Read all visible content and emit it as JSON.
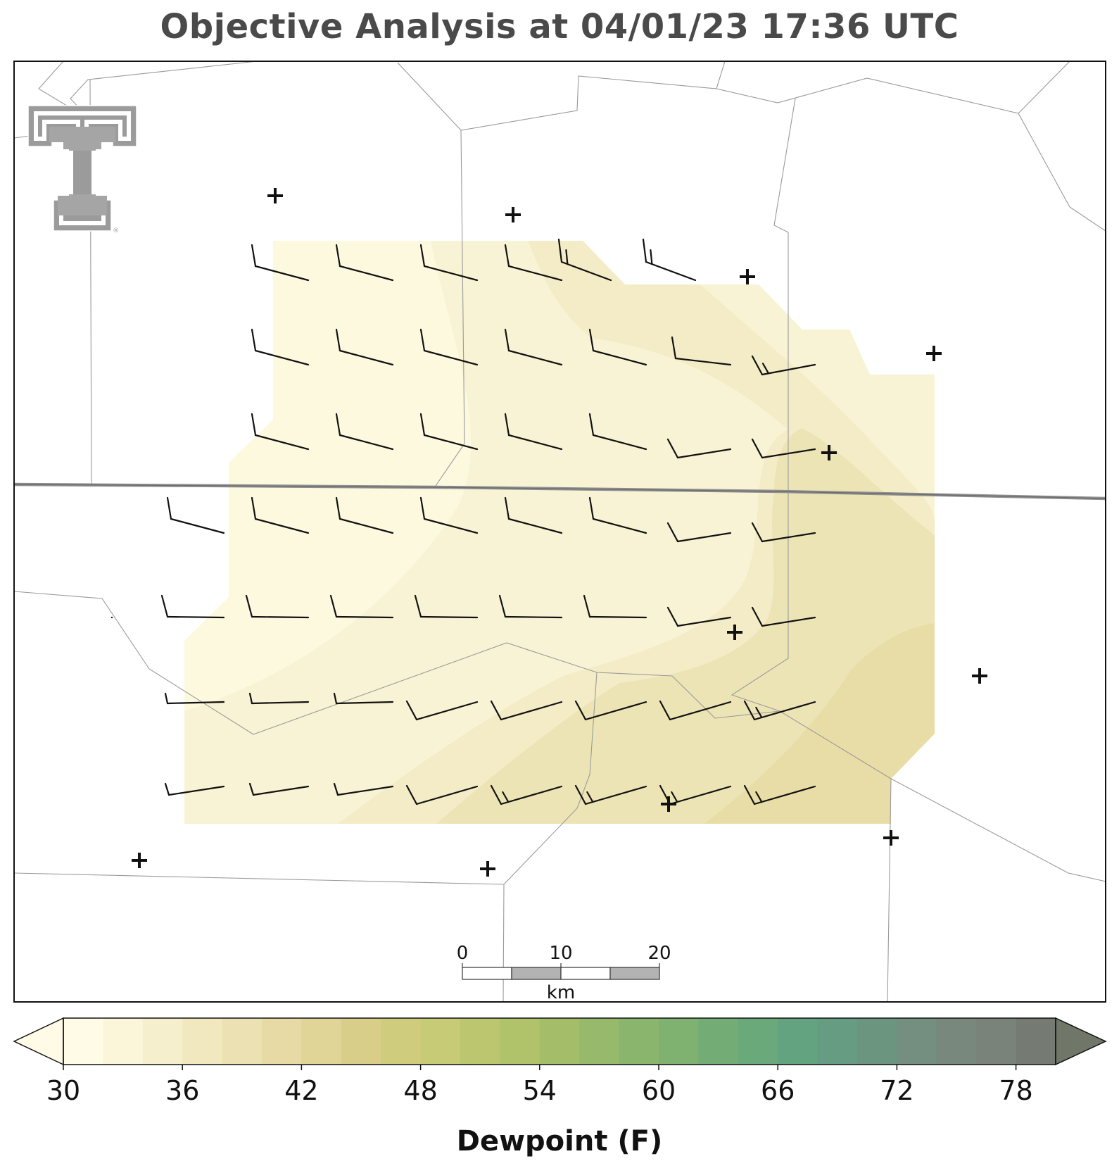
{
  "title": "Objective Analysis at 04/01/23 17:36 UTC",
  "logo": {
    "name": "Texas Tech double-T logo",
    "mark": "®"
  },
  "scalebar": {
    "ticks": [
      "0",
      "10",
      "20"
    ],
    "unit": "km"
  },
  "colorbar": {
    "label": "Dewpoint (F)",
    "ticks": [
      "30",
      "36",
      "42",
      "48",
      "54",
      "60",
      "66",
      "72",
      "78"
    ],
    "min": 30,
    "max": 80,
    "step": 2,
    "extend": "both",
    "colors": [
      "#fffbe6",
      "#fbf6d9",
      "#f6efcd",
      "#f1e8c0",
      "#ece1b2",
      "#e7daa4",
      "#e1d497",
      "#d8ce8a",
      "#cfcc7e",
      "#c8cb75",
      "#bcc66e",
      "#b0c26a",
      "#a3bd69",
      "#97b96b",
      "#8ab56d",
      "#7fb171",
      "#73ad75",
      "#6aa97a",
      "#63a37f",
      "#659c82",
      "#6c9580",
      "#748e80",
      "#79887c",
      "#7a8379",
      "#757b72"
    ]
  },
  "chart_data": {
    "type": "map",
    "field": "Dewpoint (F)",
    "analysis_grid_dewpoint_range_F": [
      31,
      40
    ],
    "stations_plotted_as": "+",
    "station_count": 12,
    "wind_barb_rows": 7,
    "wind_barb_cols": 8,
    "wind_barbs_note": "10-15 kt westerly to southwesterly winds across analysis grid"
  }
}
